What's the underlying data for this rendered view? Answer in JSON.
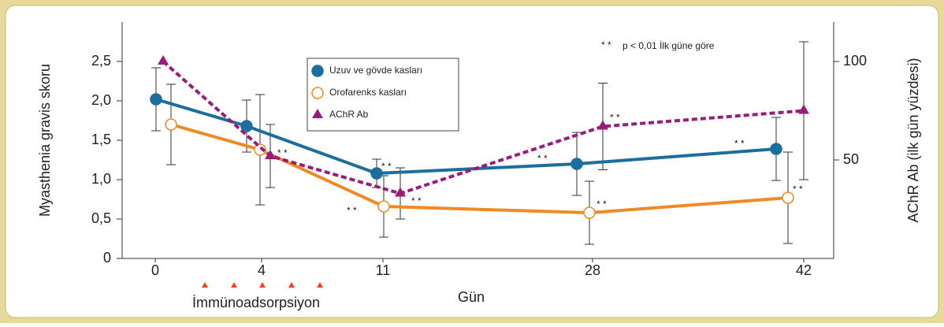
{
  "chart_data": {
    "type": "line",
    "x_label": "Gün",
    "y_label": "Myasthenia gravis skoru",
    "y2_label": "AChR Ab (ilk gün yüzdesi)",
    "categories": [
      "0",
      "4",
      "11",
      "28",
      "42"
    ],
    "series": [
      {
        "name": "Uzuv ve gövde kasları",
        "color": "#1b6e9e",
        "marker": "circle",
        "line_style": "solid",
        "values": [
          2.02,
          1.68,
          1.08,
          1.2,
          1.39
        ],
        "errors": [
          0.4,
          0.33,
          0.18,
          0.4,
          0.4
        ]
      },
      {
        "name": "Orofarenks kasları",
        "color": "#f08a24",
        "marker": "open-circle",
        "line_style": "solid",
        "values": [
          1.7,
          1.38,
          0.66,
          0.58,
          0.77
        ],
        "errors": [
          0.51,
          0.7,
          0.39,
          0.4,
          0.58
        ]
      },
      {
        "name": "AChR Ab",
        "color": "#9a1c78",
        "marker": "triangle",
        "line_style": "dashed",
        "axis": "y2",
        "values": [
          100,
          52,
          33,
          67,
          75
        ],
        "errors": [
          null,
          16,
          13,
          22,
          35
        ]
      }
    ],
    "ylim": [
      0,
      3
    ],
    "yticks": [
      0,
      {
        "value": 0.5,
        "label": "0,5"
      },
      {
        "value": 1,
        "label": "1,0"
      },
      {
        "value": 1.5,
        "label": "1,5"
      },
      {
        "value": 2,
        "label": "2,0"
      },
      {
        "value": 2.5,
        "label": "2,5"
      }
    ],
    "y2lim": [
      0,
      120
    ],
    "y2ticks": [
      50,
      100
    ],
    "significance_mark": "* *",
    "significance_note": "p < 0,01 İlk güne göre",
    "treatment_label": "İmmünoadsorpsiyon",
    "treatment_color": "#e8452c"
  }
}
